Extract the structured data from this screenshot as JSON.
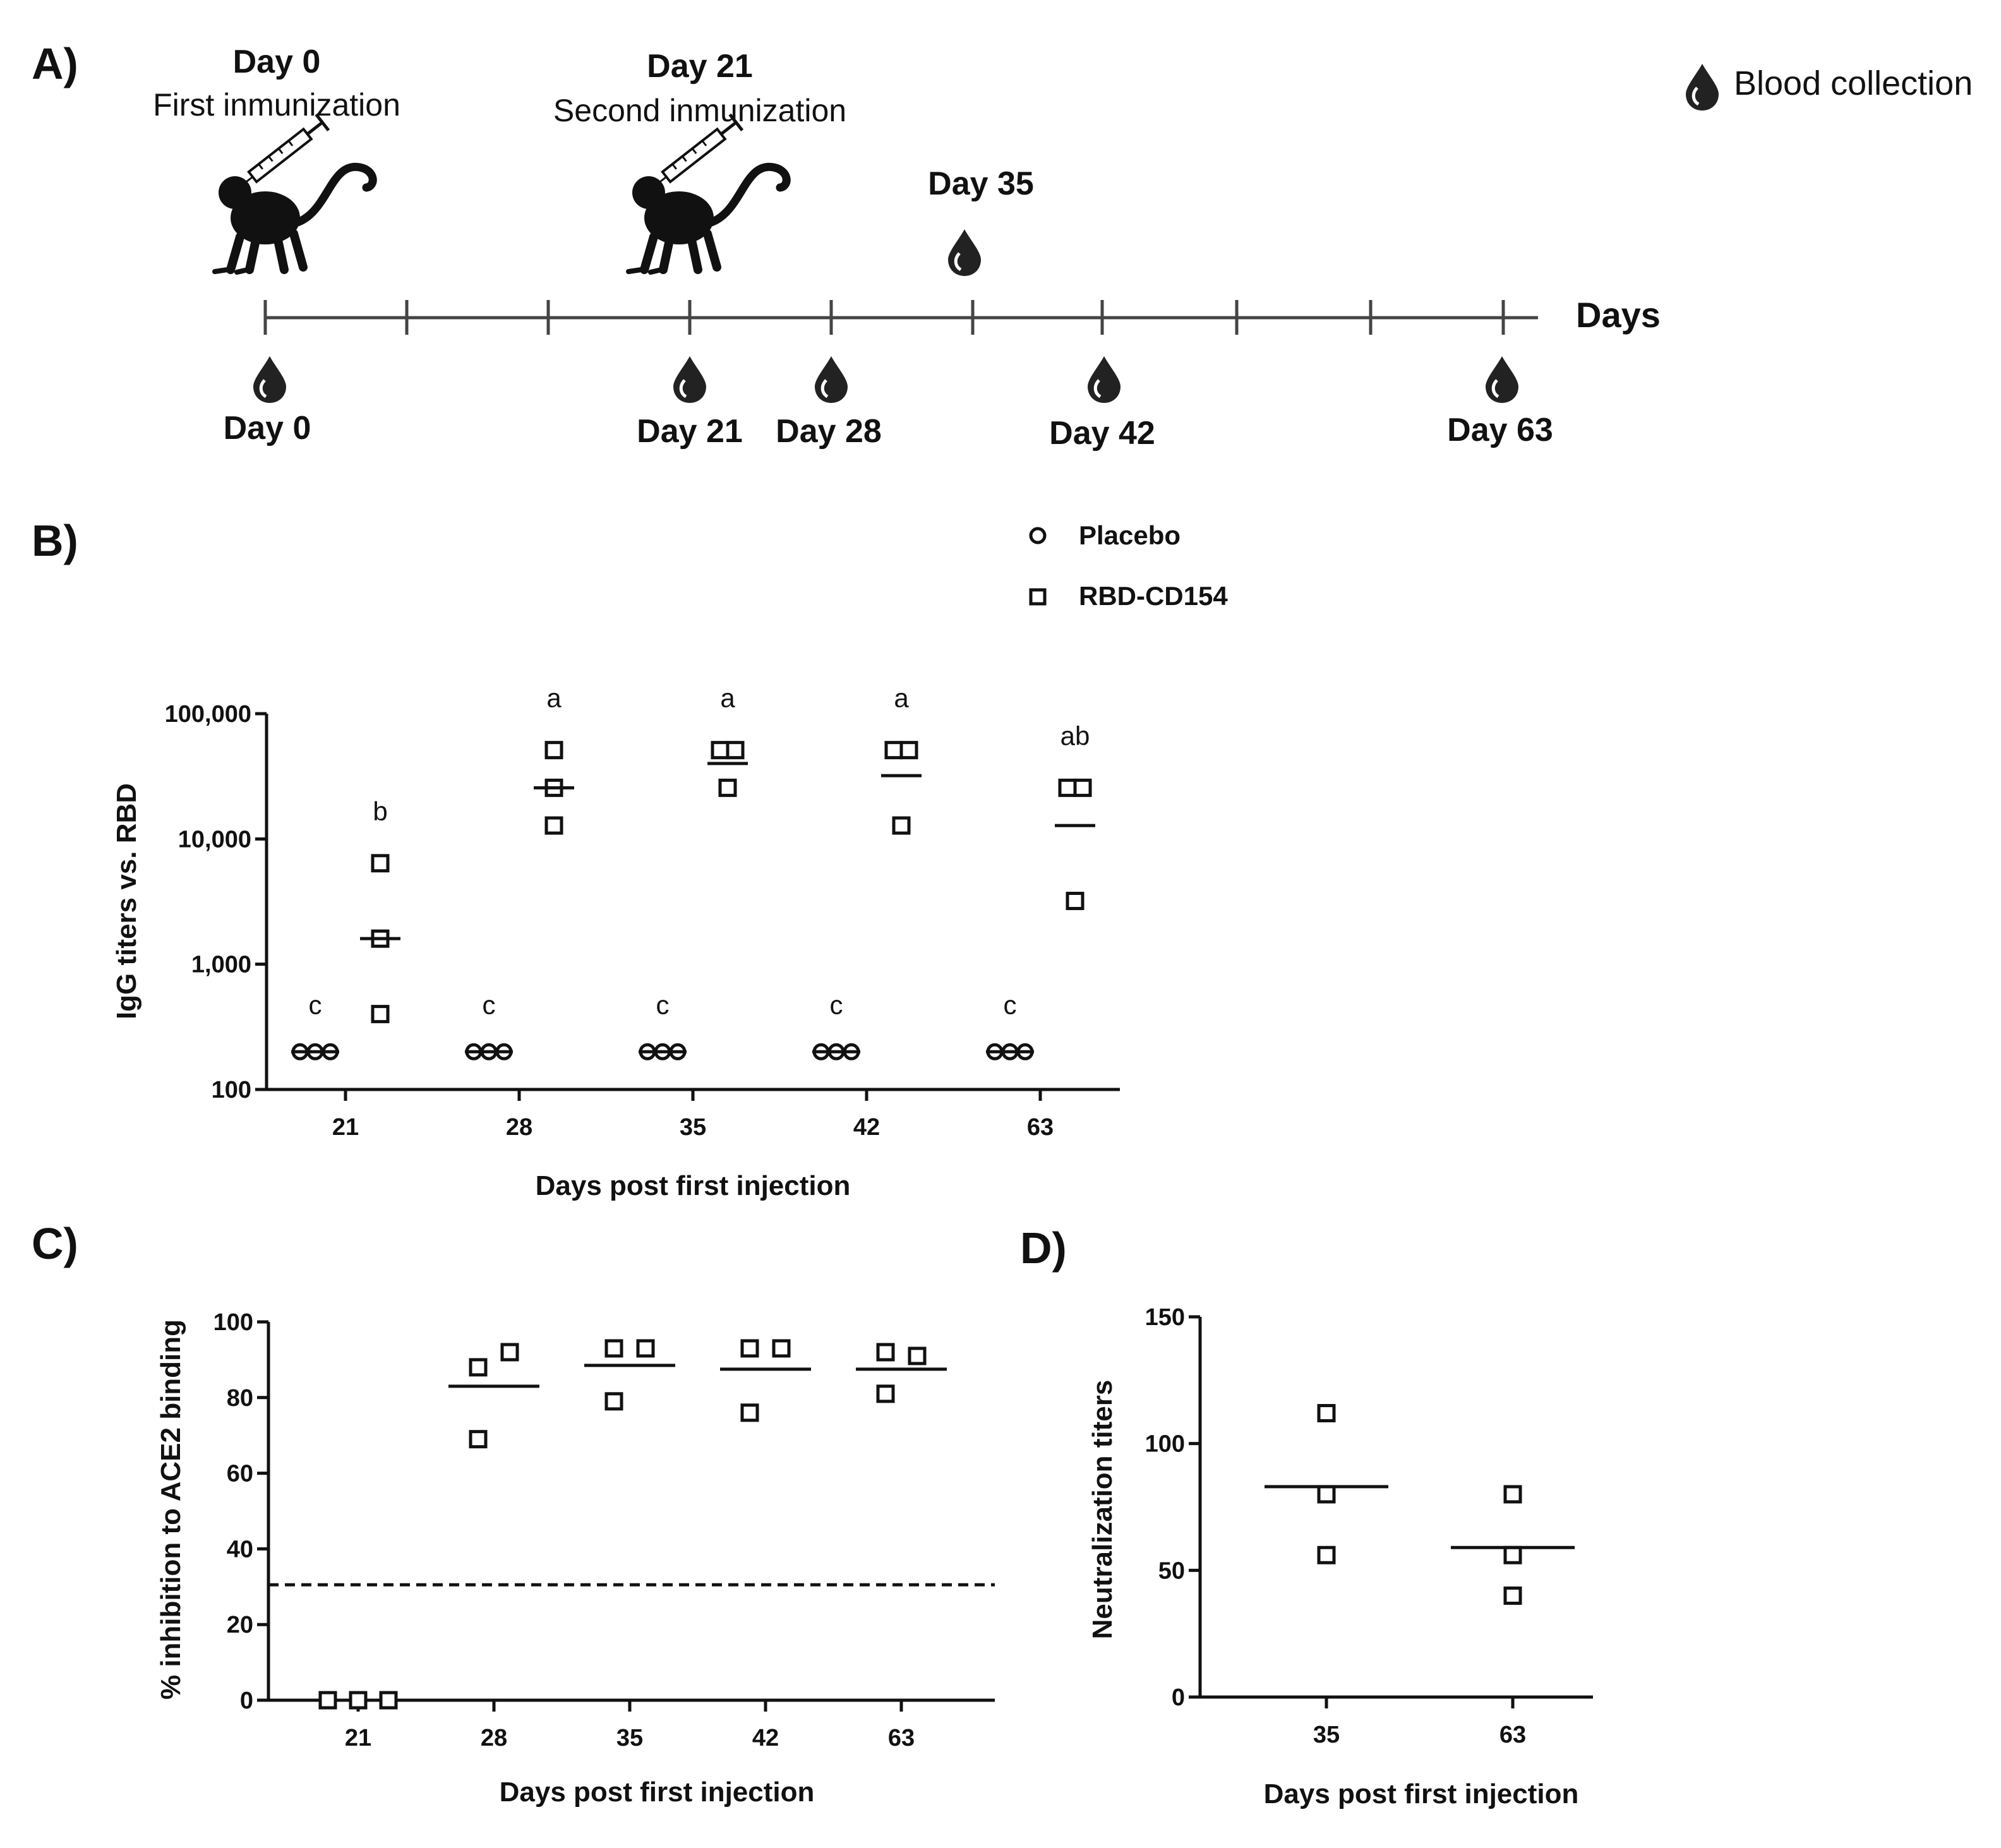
{
  "panels": {
    "a": "A)",
    "b": "B)",
    "c": "C)",
    "d": "D)"
  },
  "timeline": {
    "legend_label": "Blood collection",
    "axis_label": "Days",
    "top_events": [
      {
        "day": "Day 0",
        "label": "First inmunization"
      },
      {
        "day": "Day 21",
        "label": "Second inmunization"
      }
    ],
    "top_blood": "Day 35",
    "bottom_blood": [
      "Day 0",
      "Day 21",
      "Day 28",
      "Day 42",
      "Day 63"
    ]
  },
  "icons": {
    "monkey": "monkey-with-syringe-icon",
    "drop": "blood-drop-icon"
  },
  "chart_data": [
    {
      "panel": "B",
      "type": "scatter",
      "yscale": "log",
      "ylim": [
        100,
        100000
      ],
      "yticks": [
        "100",
        "1,000",
        "10,000",
        "100,000"
      ],
      "ylabel": "IgG titers vs. RBD",
      "xlabel": "Days post first injection",
      "categories": [
        "21",
        "28",
        "35",
        "42",
        "63"
      ],
      "legend": [
        {
          "marker": "circle",
          "name": "Placebo"
        },
        {
          "marker": "square",
          "name": "RBD-CD154"
        }
      ],
      "series": [
        {
          "name": "Placebo",
          "values": [
            [
              200,
              200,
              200
            ],
            [
              200,
              200,
              200
            ],
            [
              200,
              200,
              200
            ],
            [
              200,
              200,
              200
            ],
            [
              200,
              200,
              200
            ]
          ],
          "medians": [
            200,
            200,
            200,
            200,
            200
          ]
        },
        {
          "name": "RBD-CD154",
          "values": [
            [
              6400,
              1600,
              400
            ],
            [
              51200,
              25600,
              12800
            ],
            [
              51200,
              51200,
              25600
            ],
            [
              51200,
              51200,
              12800
            ],
            [
              25600,
              25600,
              3200
            ]
          ],
          "medians": [
            1600,
            25600,
            40000,
            32000,
            12800
          ]
        }
      ],
      "letters": {
        "Placebo": [
          "c",
          "c",
          "c",
          "c",
          "c"
        ],
        "RBD-CD154": [
          "b",
          "a",
          "a",
          "a",
          "ab"
        ]
      }
    },
    {
      "panel": "C",
      "type": "scatter",
      "ylim": [
        0,
        100
      ],
      "yticks": [
        "0",
        "20",
        "40",
        "60",
        "80",
        "100"
      ],
      "ylabel": "% inhibition to ACE2 binding",
      "xlabel": "Days post first injection",
      "categories": [
        "21",
        "28",
        "35",
        "42",
        "63"
      ],
      "values": [
        [
          0,
          0,
          0
        ],
        [
          88,
          92,
          69
        ],
        [
          93,
          93,
          79
        ],
        [
          93,
          93,
          76
        ],
        [
          92,
          91,
          81
        ]
      ],
      "medians": [
        0,
        83,
        88.5,
        87.5,
        87.5
      ],
      "cutoff": 30.5
    },
    {
      "panel": "D",
      "type": "scatter",
      "ylim": [
        0,
        150
      ],
      "yticks": [
        "0",
        "50",
        "100",
        "150"
      ],
      "ylabel": "Neutralization titers",
      "xlabel": "Days post first injection",
      "categories": [
        "35",
        "63"
      ],
      "values": [
        [
          112,
          80,
          56
        ],
        [
          80,
          56,
          40
        ]
      ],
      "medians": [
        83,
        59
      ]
    }
  ]
}
